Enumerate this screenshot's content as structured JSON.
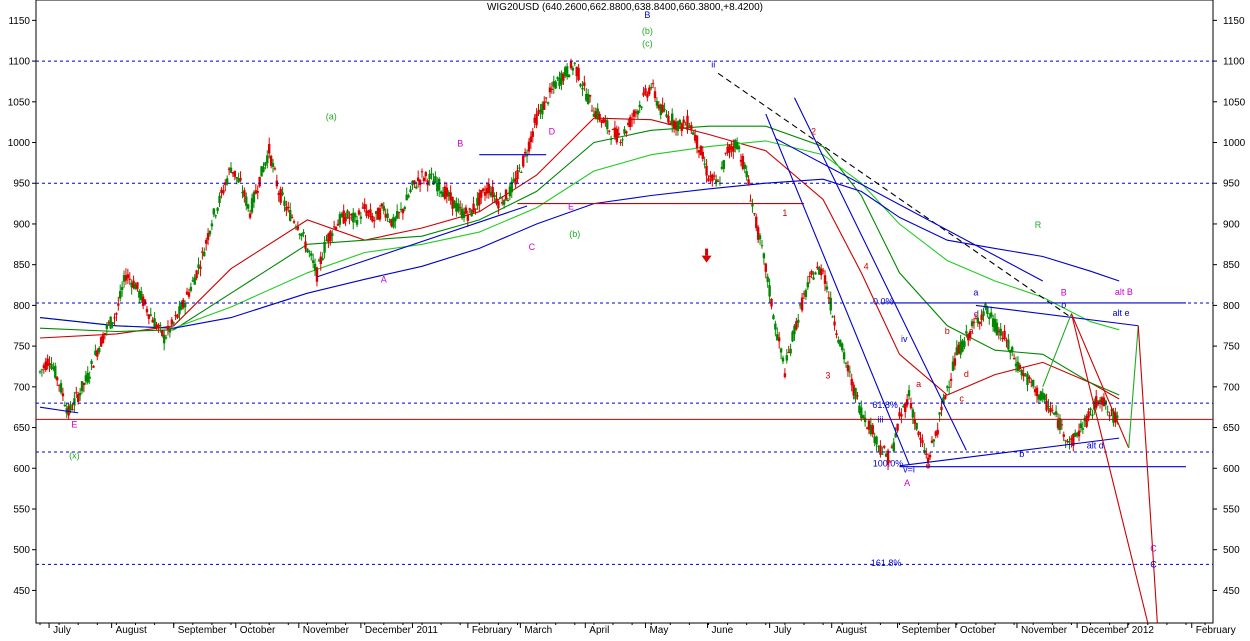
{
  "chart_data": {
    "type": "candlestick",
    "title": "WIG20USD (640.2600,662.8800,638.8400,660.3800,+8.4200)",
    "ylim": [
      410,
      1175
    ],
    "y_ticks": [
      450,
      500,
      550,
      600,
      650,
      700,
      750,
      800,
      850,
      900,
      950,
      1000,
      1050,
      1100,
      1150
    ],
    "x_labels": [
      "July",
      "August",
      "September",
      "October",
      "November",
      "December",
      "2011",
      "February",
      "March",
      "April",
      "May",
      "June",
      "July",
      "August",
      "September",
      "October",
      "November",
      "December",
      "2012",
      "February"
    ],
    "x_positions": [
      0.95,
      7.5,
      14.0,
      20.5,
      27.1,
      33.6,
      39.0,
      44.8,
      50.3,
      57.1,
      63.4,
      69.9,
      76.4,
      82.9,
      89.8,
      95.9,
      102.3,
      108.6,
      113.9,
      120.6
    ],
    "price_path": [
      [
        0,
        718
      ],
      [
        1,
        735
      ],
      [
        2,
        705
      ],
      [
        3,
        668
      ],
      [
        4,
        690
      ],
      [
        5,
        712
      ],
      [
        6,
        745
      ],
      [
        7,
        772
      ],
      [
        8,
        790
      ],
      [
        9,
        838
      ],
      [
        10,
        825
      ],
      [
        11,
        800
      ],
      [
        12,
        780
      ],
      [
        13,
        760
      ],
      [
        14,
        778
      ],
      [
        15,
        800
      ],
      [
        16,
        828
      ],
      [
        17,
        860
      ],
      [
        18,
        905
      ],
      [
        19,
        935
      ],
      [
        20,
        970
      ],
      [
        21,
        948
      ],
      [
        22,
        915
      ],
      [
        23,
        955
      ],
      [
        24,
        990
      ],
      [
        25,
        940
      ],
      [
        26,
        915
      ],
      [
        27,
        900
      ],
      [
        28,
        870
      ],
      [
        29,
        838
      ],
      [
        30,
        880
      ],
      [
        31,
        900
      ],
      [
        32,
        910
      ],
      [
        33,
        905
      ],
      [
        34,
        918
      ],
      [
        35,
        905
      ],
      [
        36,
        920
      ],
      [
        37,
        900
      ],
      [
        38,
        918
      ],
      [
        39,
        945
      ],
      [
        40,
        958
      ],
      [
        41,
        955
      ],
      [
        42,
        945
      ],
      [
        43,
        930
      ],
      [
        44,
        915
      ],
      [
        45,
        912
      ],
      [
        46,
        930
      ],
      [
        47,
        945
      ],
      [
        48,
        928
      ],
      [
        49,
        935
      ],
      [
        50,
        958
      ],
      [
        51,
        990
      ],
      [
        52,
        1030
      ],
      [
        53,
        1050
      ],
      [
        54,
        1072
      ],
      [
        55,
        1085
      ],
      [
        56,
        1095
      ],
      [
        57,
        1065
      ],
      [
        58,
        1040
      ],
      [
        59,
        1025
      ],
      [
        60,
        1010
      ],
      [
        61,
        1008
      ],
      [
        62,
        1030
      ],
      [
        63,
        1050
      ],
      [
        64,
        1070
      ],
      [
        65,
        1040
      ],
      [
        66,
        1030
      ],
      [
        67,
        1020
      ],
      [
        68,
        1025
      ],
      [
        69,
        995
      ],
      [
        70,
        958
      ],
      [
        71,
        948
      ],
      [
        72,
        990
      ],
      [
        73,
        1000
      ],
      [
        74,
        960
      ],
      [
        75,
        900
      ],
      [
        76,
        845
      ],
      [
        77,
        775
      ],
      [
        78,
        720
      ],
      [
        79,
        770
      ],
      [
        80,
        810
      ],
      [
        81,
        840
      ],
      [
        82,
        845
      ],
      [
        83,
        790
      ],
      [
        84,
        745
      ],
      [
        85,
        705
      ],
      [
        86,
        670
      ],
      [
        87,
        650
      ],
      [
        88,
        625
      ],
      [
        89,
        610
      ],
      [
        90,
        660
      ],
      [
        91,
        690
      ],
      [
        92,
        640
      ],
      [
        93,
        610
      ],
      [
        94,
        650
      ],
      [
        95,
        700
      ],
      [
        96,
        740
      ],
      [
        97,
        760
      ],
      [
        98,
        780
      ],
      [
        99,
        795
      ],
      [
        100,
        775
      ],
      [
        101,
        760
      ],
      [
        102,
        735
      ],
      [
        103,
        715
      ],
      [
        104,
        700
      ],
      [
        105,
        685
      ],
      [
        106,
        670
      ],
      [
        107,
        650
      ],
      [
        108,
        630
      ],
      [
        109,
        650
      ],
      [
        110,
        665
      ],
      [
        111,
        690
      ],
      [
        112,
        665
      ],
      [
        113,
        660
      ]
    ],
    "moving_averages": [
      {
        "name": "",
        "color": "#cc0000",
        "points": [
          [
            0,
            760
          ],
          [
            8,
            765
          ],
          [
            14,
            775
          ],
          [
            20,
            845
          ],
          [
            28,
            905
          ],
          [
            34,
            880
          ],
          [
            40,
            895
          ],
          [
            46,
            915
          ],
          [
            52,
            960
          ],
          [
            58,
            1030
          ],
          [
            64,
            1028
          ],
          [
            70,
            1010
          ],
          [
            76,
            990
          ],
          [
            82,
            930
          ],
          [
            86,
            840
          ],
          [
            90,
            740
          ],
          [
            95,
            690
          ],
          [
            100,
            715
          ],
          [
            105,
            730
          ],
          [
            110,
            705
          ],
          [
            113,
            685
          ]
        ]
      },
      {
        "name": "",
        "color": "#008800",
        "points": [
          [
            0,
            772
          ],
          [
            8,
            768
          ],
          [
            14,
            770
          ],
          [
            20,
            815
          ],
          [
            28,
            875
          ],
          [
            34,
            880
          ],
          [
            40,
            885
          ],
          [
            46,
            905
          ],
          [
            52,
            940
          ],
          [
            58,
            1000
          ],
          [
            64,
            1015
          ],
          [
            70,
            1020
          ],
          [
            76,
            1020
          ],
          [
            82,
            995
          ],
          [
            86,
            935
          ],
          [
            90,
            840
          ],
          [
            95,
            775
          ],
          [
            100,
            745
          ],
          [
            105,
            740
          ],
          [
            110,
            705
          ],
          [
            113,
            690
          ]
        ]
      },
      {
        "name": "",
        "color": "#22cc22",
        "points": [
          [
            0,
            785
          ],
          [
            8,
            775
          ],
          [
            14,
            772
          ],
          [
            20,
            798
          ],
          [
            28,
            840
          ],
          [
            34,
            865
          ],
          [
            40,
            875
          ],
          [
            46,
            890
          ],
          [
            52,
            920
          ],
          [
            58,
            965
          ],
          [
            64,
            985
          ],
          [
            70,
            995
          ],
          [
            76,
            1002
          ],
          [
            82,
            985
          ],
          [
            86,
            950
          ],
          [
            90,
            900
          ],
          [
            95,
            855
          ],
          [
            100,
            830
          ],
          [
            105,
            810
          ],
          [
            110,
            780
          ],
          [
            113,
            770
          ]
        ]
      },
      {
        "name": "",
        "color": "#0000cc",
        "points": [
          [
            0,
            785
          ],
          [
            8,
            775
          ],
          [
            14,
            772
          ],
          [
            20,
            785
          ],
          [
            28,
            815
          ],
          [
            34,
            832
          ],
          [
            40,
            848
          ],
          [
            46,
            870
          ],
          [
            52,
            900
          ],
          [
            58,
            925
          ],
          [
            64,
            935
          ],
          [
            70,
            943
          ],
          [
            76,
            950
          ],
          [
            82,
            955
          ],
          [
            86,
            940
          ],
          [
            90,
            908
          ],
          [
            95,
            880
          ],
          [
            100,
            870
          ],
          [
            105,
            860
          ],
          [
            110,
            842
          ],
          [
            113,
            830
          ]
        ]
      }
    ],
    "h_levels": [
      {
        "y": 1100,
        "color": "#0000cc",
        "dash": true
      },
      {
        "y": 950,
        "color": "#0000cc",
        "dash": true
      },
      {
        "y": 803,
        "color": "#0000cc",
        "dash": true
      },
      {
        "y": 680,
        "color": "#0000cc",
        "dash": true
      },
      {
        "y": 620,
        "color": "#0000cc",
        "dash": true
      },
      {
        "y": 482,
        "color": "#0000cc",
        "dash": true
      },
      {
        "y": 660,
        "color": "#cc0000",
        "dash": false
      }
    ],
    "trend_lines": [
      {
        "x1": 0,
        "y1": 675,
        "x2": 4,
        "y2": 668,
        "color": "#0000cc",
        "dash": false
      },
      {
        "x1": 29,
        "y1": 835,
        "x2": 51,
        "y2": 922,
        "color": "#0000cc",
        "dash": false
      },
      {
        "x1": 46,
        "y1": 985,
        "x2": 53,
        "y2": 985,
        "color": "#0000cc",
        "dash": false
      },
      {
        "x1": 50,
        "y1": 925,
        "x2": 80,
        "y2": 925,
        "color": "#cc0000",
        "dash": false
      },
      {
        "x1": 71,
        "y1": 1085,
        "x2": 108,
        "y2": 785,
        "color": "#000000",
        "dash": true
      },
      {
        "x1": 79,
        "y1": 1055,
        "x2": 97,
        "y2": 622,
        "color": "#0000cc",
        "dash": false
      },
      {
        "x1": 76,
        "y1": 1035,
        "x2": 91,
        "y2": 605,
        "color": "#0000cc",
        "dash": false
      },
      {
        "x1": 77,
        "y1": 1005,
        "x2": 105,
        "y2": 830,
        "color": "#0000cc",
        "dash": false
      },
      {
        "x1": 90,
        "y1": 603,
        "x2": 113,
        "y2": 637,
        "color": "#0000cc",
        "dash": false
      },
      {
        "x1": 90,
        "y1": 602,
        "x2": 120,
        "y2": 602,
        "color": "#0000cc",
        "dash": false
      },
      {
        "x1": 88,
        "y1": 803,
        "x2": 120,
        "y2": 803,
        "color": "#0000cc",
        "dash": false
      },
      {
        "x1": 98,
        "y1": 800,
        "x2": 115,
        "y2": 775,
        "color": "#0000cc",
        "dash": false
      },
      {
        "x1": 105,
        "y1": 700,
        "x2": 108,
        "y2": 790,
        "color": "#22aa22",
        "dash": false
      },
      {
        "x1": 108,
        "y1": 790,
        "x2": 114,
        "y2": 625,
        "color": "#cc0000",
        "dash": false
      },
      {
        "x1": 114,
        "y1": 625,
        "x2": 115,
        "y2": 775,
        "color": "#22aa22",
        "dash": false
      },
      {
        "x1": 108,
        "y1": 790,
        "x2": 116,
        "y2": 410,
        "color": "#cc0000",
        "dash": false
      },
      {
        "x1": 115,
        "y1": 775,
        "x2": 117,
        "y2": 410,
        "color": "#cc0000",
        "dash": false
      }
    ],
    "labels": [
      {
        "x": 3.6,
        "y": 650,
        "text": "E",
        "color": "#cc00cc"
      },
      {
        "x": 3.6,
        "y": 612,
        "text": "(x)",
        "color": "#22aa22"
      },
      {
        "x": 30.5,
        "y": 1028,
        "text": "(a)",
        "color": "#22aa22"
      },
      {
        "x": 36.0,
        "y": 828,
        "text": "A",
        "color": "#cc00cc"
      },
      {
        "x": 44.0,
        "y": 995,
        "text": "B",
        "color": "#cc00cc"
      },
      {
        "x": 51.5,
        "y": 868,
        "text": "C",
        "color": "#cc00cc"
      },
      {
        "x": 53.6,
        "y": 1010,
        "text": "D",
        "color": "#cc00cc"
      },
      {
        "x": 55.6,
        "y": 918,
        "text": "E",
        "color": "#cc00cc"
      },
      {
        "x": 56.0,
        "y": 884,
        "text": "(b)",
        "color": "#22aa22"
      },
      {
        "x": 63.6,
        "y": 1153,
        "text": "B",
        "color": "#0000cc"
      },
      {
        "x": 63.6,
        "y": 1133,
        "text": "(b)",
        "color": "#22aa22"
      },
      {
        "x": 63.6,
        "y": 1118,
        "text": "(c)",
        "color": "#22aa22"
      },
      {
        "x": 70.5,
        "y": 1092,
        "text": "ii",
        "color": "#0000cc"
      },
      {
        "x": 81.0,
        "y": 1010,
        "text": "2",
        "color": "#cc0000"
      },
      {
        "x": 78.0,
        "y": 910,
        "text": "1",
        "color": "#cc0000"
      },
      {
        "x": 86.5,
        "y": 844,
        "text": "4",
        "color": "#cc0000"
      },
      {
        "x": 82.5,
        "y": 710,
        "text": "3",
        "color": "#cc0000"
      },
      {
        "x": 88.3,
        "y": 801,
        "text": "0.0%",
        "color": "#0000cc"
      },
      {
        "x": 90.5,
        "y": 755,
        "text": "iv",
        "color": "#0000cc"
      },
      {
        "x": 88.5,
        "y": 674,
        "text": "61.8%",
        "color": "#0000cc"
      },
      {
        "x": 88.0,
        "y": 656,
        "text": "iii",
        "color": "#0000cc"
      },
      {
        "x": 88.8,
        "y": 602,
        "text": "100.0%",
        "color": "#0000cc"
      },
      {
        "x": 91.0,
        "y": 595,
        "text": "v=i",
        "color": "#0000cc"
      },
      {
        "x": 90.8,
        "y": 578,
        "text": "A",
        "color": "#cc00cc"
      },
      {
        "x": 92.0,
        "y": 700,
        "text": "a",
        "color": "#cc0000"
      },
      {
        "x": 93.0,
        "y": 600,
        "text": "e",
        "color": "#cc0000"
      },
      {
        "x": 95.0,
        "y": 765,
        "text": "b",
        "color": "#cc0000"
      },
      {
        "x": 96.5,
        "y": 682,
        "text": "c",
        "color": "#cc0000"
      },
      {
        "x": 97.0,
        "y": 712,
        "text": "d",
        "color": "#cc0000"
      },
      {
        "x": 97.5,
        "y": 765,
        "text": "a",
        "color": "#cc0000"
      },
      {
        "x": 98.0,
        "y": 812,
        "text": "a",
        "color": "#0000cc"
      },
      {
        "x": 98.0,
        "y": 786,
        "text": "c",
        "color": "#cc00cc"
      },
      {
        "x": 102.8,
        "y": 614,
        "text": "b",
        "color": "#0000cc"
      },
      {
        "x": 104.5,
        "y": 895,
        "text": "R",
        "color": "#22aa22"
      },
      {
        "x": 107.2,
        "y": 812,
        "text": "B",
        "color": "#cc00cc"
      },
      {
        "x": 107.2,
        "y": 797,
        "text": "o",
        "color": "#0000cc"
      },
      {
        "x": 113.5,
        "y": 813,
        "text": "alt B",
        "color": "#cc00cc"
      },
      {
        "x": 113.2,
        "y": 787,
        "text": "alt e",
        "color": "#0000cc"
      },
      {
        "x": 110.5,
        "y": 624,
        "text": "alt d",
        "color": "#0000cc"
      },
      {
        "x": 116.6,
        "y": 498,
        "text": "C",
        "color": "#cc00cc"
      },
      {
        "x": 116.6,
        "y": 478,
        "text": "C",
        "color": "#0000cc"
      },
      {
        "x": 88.6,
        "y": 480,
        "text": "161.8%",
        "color": "#0000cc"
      }
    ],
    "arrow": {
      "x": 69.8,
      "y": 855,
      "color": "#dd0000"
    }
  }
}
